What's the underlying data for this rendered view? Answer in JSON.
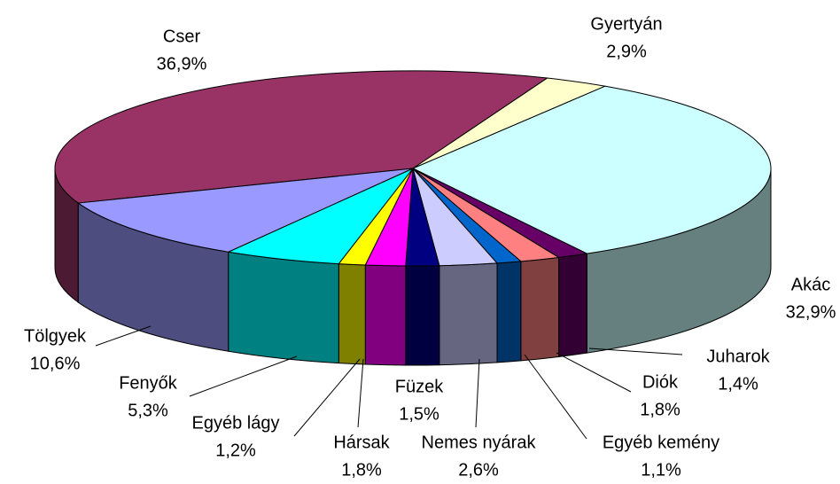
{
  "chart_data": {
    "type": "pie",
    "categories": [
      "Cser",
      "Gyertyán",
      "Akác",
      "Juharok",
      "Diók",
      "Egyéb kemény",
      "Nemes nyárak",
      "Füzek",
      "Hársak",
      "Egyéb lágy",
      "Fenyők",
      "Tölgyek"
    ],
    "values": [
      36.9,
      2.9,
      32.9,
      1.4,
      1.8,
      1.1,
      2.6,
      1.5,
      1.8,
      1.2,
      5.3,
      10.6
    ],
    "value_labels": [
      "36,9%",
      "2,9%",
      "32,9%",
      "1,4%",
      "1,8%",
      "1,1%",
      "2,6%",
      "1,5%",
      "1,8%",
      "1,2%",
      "5,3%",
      "10,6%"
    ],
    "colors": [
      "#993366",
      "#ffffcc",
      "#ccffff",
      "#660066",
      "#ff8080",
      "#0066cc",
      "#ccccff",
      "#000080",
      "#ff00ff",
      "#ffff00",
      "#00ffff",
      "#9999ff"
    ]
  }
}
